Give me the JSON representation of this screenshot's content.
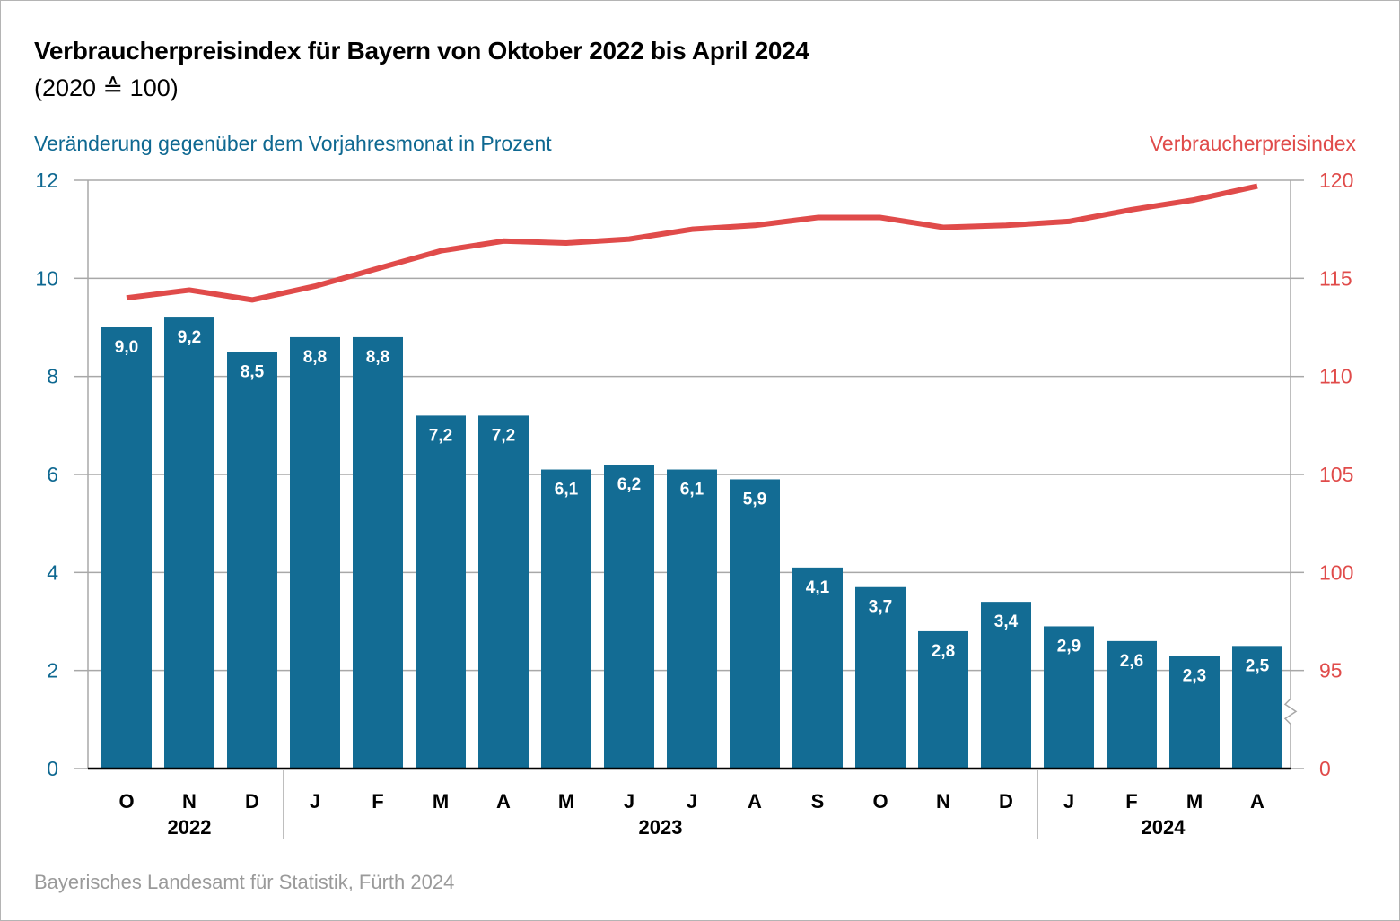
{
  "header": {
    "title": "Verbraucherpreisindex für Bayern von Oktober 2022 bis April 2024",
    "subtitle": "(2020 ≙ 100)"
  },
  "footer": {
    "source": "Bayerisches Landesamt für Statistik, Fürth 2024"
  },
  "colors": {
    "bars": "#136c94",
    "line": "#e04b4a",
    "left_axis_text": "#0e6891",
    "right_axis_text": "#e04b4a",
    "grid": "#a8a8a8"
  },
  "chart_data": {
    "type": "bar",
    "title": "Verbraucherpreisindex für Bayern von Oktober 2022 bis April 2024",
    "subtitle": "(2020 ≙ 100)",
    "categories": [
      "O",
      "N",
      "D",
      "J",
      "F",
      "M",
      "A",
      "M",
      "J",
      "J",
      "A",
      "S",
      "O",
      "N",
      "D",
      "J",
      "F",
      "M",
      "A"
    ],
    "year_groups": [
      {
        "label": "2022",
        "start": 0,
        "end": 2
      },
      {
        "label": "2023",
        "start": 3,
        "end": 14
      },
      {
        "label": "2024",
        "start": 15,
        "end": 18
      }
    ],
    "series": [
      {
        "name": "Veränderung gegenüber dem Vorjahresmonat in Prozent",
        "type": "bar",
        "axis": "left",
        "values": [
          9.0,
          9.2,
          8.5,
          8.8,
          8.8,
          7.2,
          7.2,
          6.1,
          6.2,
          6.1,
          5.9,
          4.1,
          3.7,
          2.8,
          3.4,
          2.9,
          2.6,
          2.3,
          2.5
        ],
        "labels": [
          "9,0",
          "9,2",
          "8,5",
          "8,8",
          "8,8",
          "7,2",
          "7,2",
          "6,1",
          "6,2",
          "6,1",
          "5,9",
          "4,1",
          "3,7",
          "2,8",
          "3,4",
          "2,9",
          "2,6",
          "2,3",
          "2,5"
        ]
      },
      {
        "name": "Verbraucherpreisindex",
        "type": "line",
        "axis": "right",
        "values": [
          114.0,
          114.4,
          113.9,
          114.6,
          115.5,
          116.4,
          116.9,
          116.8,
          117.0,
          117.5,
          117.7,
          118.1,
          118.1,
          117.6,
          117.7,
          117.9,
          118.5,
          119.0,
          119.7
        ]
      }
    ],
    "left_axis": {
      "label": "Veränderung gegenüber dem Vorjahresmonat in Prozent",
      "ylim": [
        0,
        12
      ],
      "ticks": [
        0,
        2,
        4,
        6,
        8,
        10,
        12
      ],
      "tick_labels": [
        "0",
        "2",
        "4",
        "6",
        "8",
        "10",
        "12"
      ]
    },
    "right_axis": {
      "label": "Verbraucherpreisindex",
      "ylim": [
        95,
        120
      ],
      "axis_break": "between 0 and 95",
      "ticks": [
        0,
        95,
        100,
        105,
        110,
        115,
        120
      ],
      "tick_labels": [
        "0",
        "95",
        "100",
        "105",
        "110",
        "115",
        "120"
      ]
    },
    "grid": true,
    "legend": "none (axis titles as colored labels: left and top-right)"
  }
}
